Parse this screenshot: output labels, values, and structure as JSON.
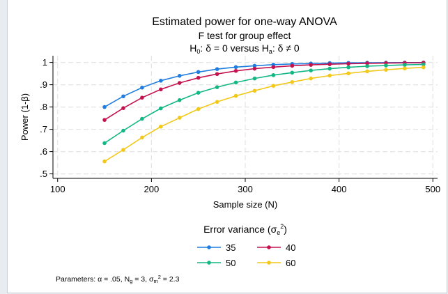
{
  "chart_data": {
    "type": "line",
    "title": "Estimated power for one-way ANOVA",
    "subtitle_line1": "F test for group effect",
    "subtitle_line2": {
      "h0_base": "H",
      "h0_sub": "0",
      "h0_rest": ": δ = 0  versus  ",
      "ha_base": "H",
      "ha_sub": "a",
      "ha_rest": ": δ ≠ 0"
    },
    "xlabel": "Sample size (N)",
    "ylabel": "Power (1-β)",
    "xlim": [
      95,
      505
    ],
    "ylim": [
      0.48,
      1.03
    ],
    "xticks": [
      100,
      200,
      300,
      400,
      500
    ],
    "yticks": [
      0.5,
      0.6,
      0.7,
      0.8,
      0.9,
      1.0
    ],
    "ytick_labels": [
      ".5",
      ".6",
      ".7",
      ".8",
      ".9",
      "1"
    ],
    "grid": true,
    "x": [
      150,
      170,
      190,
      210,
      230,
      250,
      270,
      290,
      310,
      330,
      350,
      370,
      390,
      410,
      430,
      450,
      470,
      490
    ],
    "series": [
      {
        "name": "35",
        "color": "#1f7de0",
        "values": [
          0.8,
          0.848,
          0.887,
          0.918,
          0.94,
          0.957,
          0.97,
          0.979,
          0.985,
          0.99,
          0.993,
          0.995,
          0.997,
          0.998,
          0.9985,
          0.999,
          0.9993,
          0.9995
        ]
      },
      {
        "name": "40",
        "color": "#c4124f",
        "values": [
          0.742,
          0.795,
          0.842,
          0.879,
          0.908,
          0.931,
          0.948,
          0.962,
          0.972,
          0.979,
          0.985,
          0.989,
          0.992,
          0.994,
          0.996,
          0.997,
          0.998,
          0.9985
        ]
      },
      {
        "name": "50",
        "color": "#13b784",
        "values": [
          0.638,
          0.694,
          0.747,
          0.794,
          0.831,
          0.864,
          0.889,
          0.91,
          0.928,
          0.943,
          0.954,
          0.964,
          0.972,
          0.978,
          0.983,
          0.986,
          0.989,
          0.991
        ]
      },
      {
        "name": "60",
        "color": "#f2c81a",
        "values": [
          0.556,
          0.608,
          0.663,
          0.712,
          0.752,
          0.791,
          0.823,
          0.85,
          0.873,
          0.895,
          0.912,
          0.928,
          0.941,
          0.951,
          0.96,
          0.967,
          0.973,
          0.978
        ]
      }
    ],
    "legend": {
      "title_base": "Error variance (σ",
      "title_sub": "e",
      "title_sup": "2",
      "title_end": ")",
      "placement": "bottom"
    },
    "note": {
      "p1": "Parameters: α = .05, N",
      "p1_sub": "g",
      "p2": " = 3, σ",
      "p2_sub": "m",
      "p2_sup": "2",
      "p3": " = 2.3"
    }
  }
}
